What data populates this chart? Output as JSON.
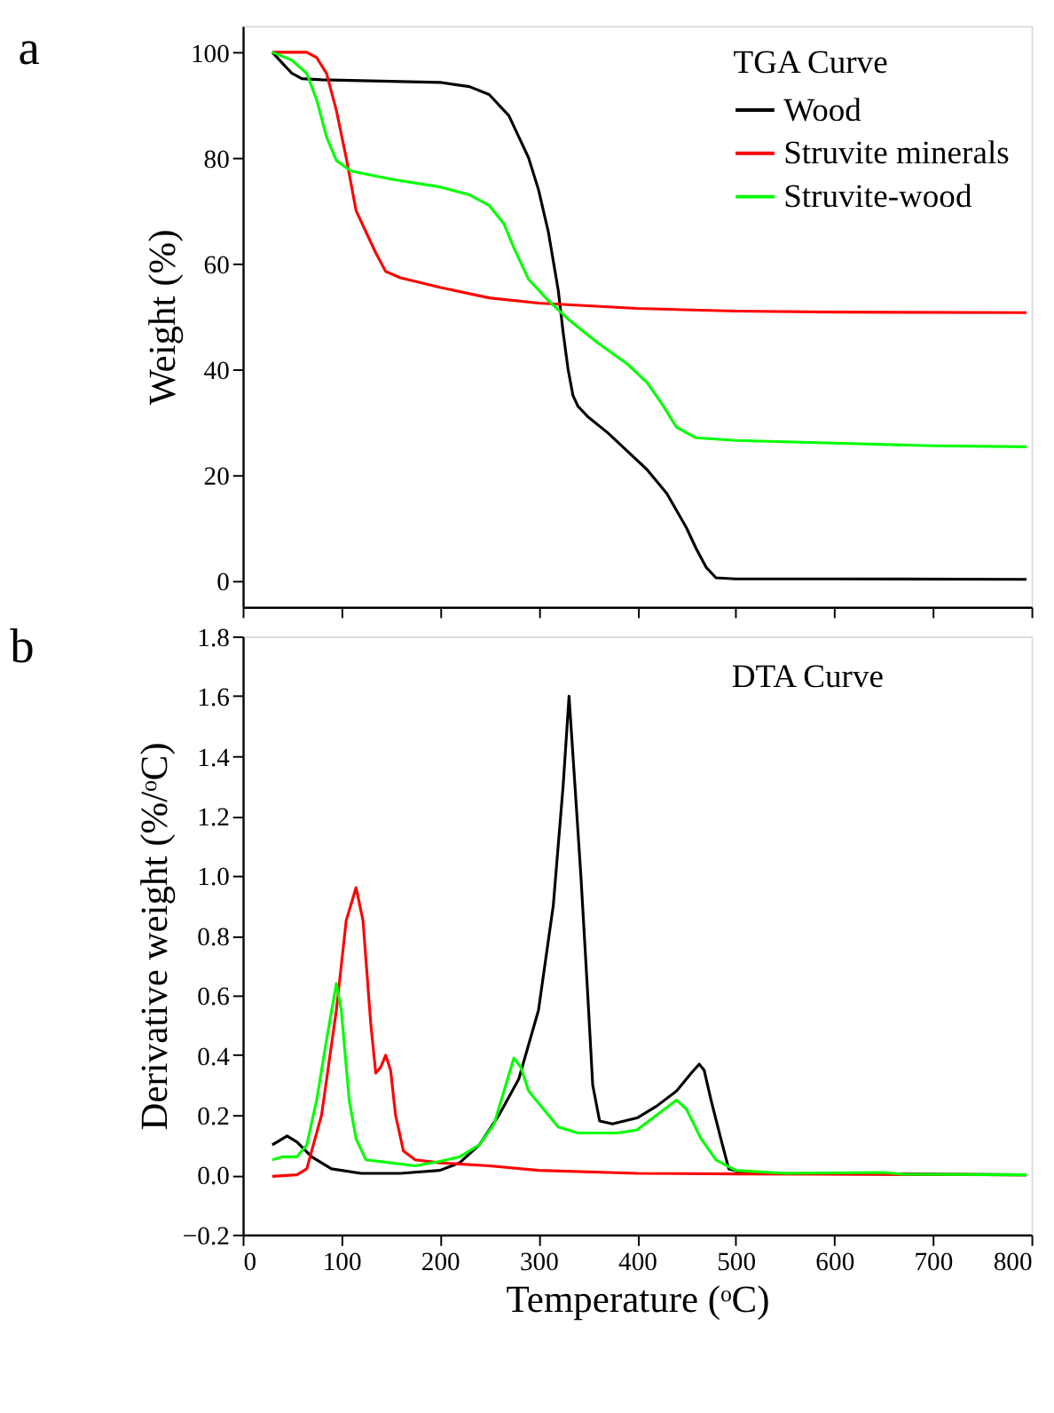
{
  "chart_data": [
    {
      "type": "line",
      "title": "a",
      "ylabel": "Weight (%)",
      "legend_title": "TGA Curve",
      "legend": "top right",
      "grid": false,
      "tick_labels": "y",
      "xlim": [
        0,
        800
      ],
      "xticks": [
        0,
        100,
        200,
        300,
        400,
        500,
        600,
        700,
        800
      ],
      "ylim": [
        -5,
        105
      ],
      "yticks": [
        0,
        20,
        40,
        60,
        80,
        100
      ],
      "series": [
        {
          "name": "Wood",
          "color": "#000000",
          "x": [
            30,
            40,
            50,
            60,
            80,
            150,
            200,
            230,
            250,
            270,
            290,
            300,
            310,
            320,
            325,
            330,
            335,
            340,
            350,
            370,
            390,
            410,
            430,
            450,
            460,
            470,
            480,
            500,
            600,
            795
          ],
          "values": [
            100,
            98,
            96,
            95,
            94.8,
            94.5,
            94.3,
            93.5,
            92,
            88,
            80,
            74,
            66,
            55,
            47,
            40,
            35,
            33,
            31,
            28,
            24.5,
            21,
            16.5,
            10,
            6,
            2.5,
            0.5,
            0.3,
            0.3,
            0.2
          ]
        },
        {
          "name": "Struvite minerals",
          "color": "#ff0000",
          "x": [
            30,
            50,
            65,
            75,
            85,
            95,
            105,
            115,
            125,
            135,
            145,
            160,
            200,
            250,
            300,
            350,
            400,
            500,
            600,
            795
          ],
          "values": [
            100,
            100,
            100,
            99,
            96,
            89,
            80,
            70,
            66,
            62,
            58.5,
            57.3,
            55.5,
            53.5,
            52.5,
            52,
            51.5,
            51,
            50.8,
            50.7
          ]
        },
        {
          "name": "Struvite-wood",
          "color": "#00ff00",
          "x": [
            30,
            50,
            65,
            75,
            85,
            95,
            110,
            150,
            200,
            230,
            250,
            265,
            275,
            290,
            310,
            330,
            360,
            390,
            410,
            425,
            440,
            460,
            500,
            600,
            700,
            795
          ],
          "values": [
            100,
            98.5,
            96,
            91,
            84,
            79.5,
            77.5,
            76,
            74.5,
            73,
            71,
            67.5,
            63,
            57,
            53,
            49.5,
            45,
            41,
            37.5,
            33.5,
            29,
            27,
            26.5,
            26,
            25.5,
            25.3
          ]
        }
      ]
    },
    {
      "type": "line",
      "title": "b",
      "xlabel": "Temperature (ᵒC)",
      "ylabel": "Derivative weight (%/ᵒC)",
      "annotations": [
        "DTA Curve"
      ],
      "grid": false,
      "xlim": [
        0,
        800
      ],
      "xticks": [
        0,
        100,
        200,
        300,
        400,
        500,
        600,
        700,
        800
      ],
      "ylim": [
        -0.2,
        1.8
      ],
      "yticks": [
        -0.2,
        {
          "value": 0,
          "label": "0.0"
        },
        0.2,
        0.4,
        0.6,
        0.8,
        {
          "value": 1,
          "label": "1.0"
        },
        1.2,
        1.4,
        1.6,
        1.8
      ],
      "series": [
        {
          "color": "#000000",
          "x": [
            30,
            35,
            45,
            55,
            70,
            90,
            120,
            160,
            200,
            220,
            240,
            260,
            280,
            300,
            315,
            325,
            331,
            337,
            343,
            350,
            355,
            362,
            375,
            400,
            420,
            440,
            455,
            463,
            468,
            475,
            485,
            493,
            510,
            795
          ],
          "values": [
            0.1,
            0.11,
            0.13,
            0.11,
            0.06,
            0.02,
            0.005,
            0.005,
            0.015,
            0.04,
            0.1,
            0.2,
            0.32,
            0.55,
            0.9,
            1.3,
            1.6,
            1.3,
            1.0,
            0.6,
            0.3,
            0.18,
            0.17,
            0.19,
            0.23,
            0.28,
            0.34,
            0.37,
            0.35,
            0.25,
            0.12,
            0.02,
            0.005,
            0.0
          ]
        },
        {
          "color": "#ff0000",
          "x": [
            30,
            55,
            65,
            80,
            95,
            105,
            115,
            122,
            130,
            135,
            140,
            145,
            150,
            155,
            163,
            175,
            200,
            250,
            300,
            400,
            500,
            795
          ],
          "values": [
            -0.005,
            0.0,
            0.02,
            0.2,
            0.55,
            0.85,
            0.96,
            0.85,
            0.5,
            0.34,
            0.36,
            0.4,
            0.35,
            0.2,
            0.08,
            0.05,
            0.04,
            0.03,
            0.015,
            0.005,
            0.003,
            0.0
          ]
        },
        {
          "color": "#00ff00",
          "x": [
            30,
            40,
            55,
            65,
            75,
            85,
            95,
            100,
            108,
            115,
            125,
            150,
            175,
            200,
            220,
            240,
            255,
            265,
            275,
            282,
            290,
            300,
            310,
            320,
            340,
            380,
            400,
            420,
            440,
            450,
            465,
            480,
            500,
            550,
            650,
            670,
            795
          ],
          "values": [
            0.05,
            0.06,
            0.06,
            0.1,
            0.25,
            0.45,
            0.64,
            0.55,
            0.25,
            0.12,
            0.05,
            0.04,
            0.03,
            0.045,
            0.06,
            0.1,
            0.17,
            0.28,
            0.39,
            0.36,
            0.28,
            0.24,
            0.2,
            0.16,
            0.14,
            0.14,
            0.15,
            0.2,
            0.25,
            0.22,
            0.12,
            0.05,
            0.015,
            0.005,
            0.008,
            0.002,
            0.0
          ]
        }
      ]
    }
  ]
}
